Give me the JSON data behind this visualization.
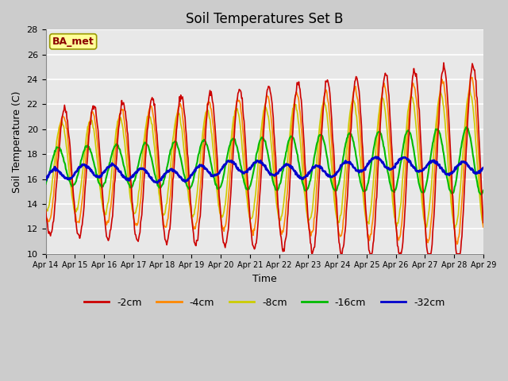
{
  "title": "Soil Temperatures Set B",
  "xlabel": "Time",
  "ylabel": "Soil Temperature (C)",
  "annotation": "BA_met",
  "ylim": [
    10,
    28
  ],
  "line_colors": {
    "-2cm": "#cc0000",
    "-4cm": "#ff8800",
    "-8cm": "#cccc00",
    "-16cm": "#00bb00",
    "-32cm": "#0000cc"
  },
  "line_widths": {
    "-2cm": 1.2,
    "-4cm": 1.2,
    "-8cm": 1.2,
    "-16cm": 1.5,
    "-32cm": 2.0
  },
  "fig_bg": "#cccccc",
  "plot_bg": "#e8e8e8",
  "title_fontsize": 12,
  "label_fontsize": 9,
  "tick_labels": [
    "Apr 14",
    "Apr 15",
    "Apr 16",
    "Apr 17",
    "Apr 18",
    "Apr 19",
    "Apr 20",
    "Apr 21",
    "Apr 22",
    "Apr 23",
    "Apr 24",
    "Apr 25",
    "Apr 26",
    "Apr 27",
    "Apr 28",
    "Apr 29"
  ],
  "yticks": [
    10,
    12,
    14,
    16,
    18,
    20,
    22,
    24,
    26,
    28
  ]
}
